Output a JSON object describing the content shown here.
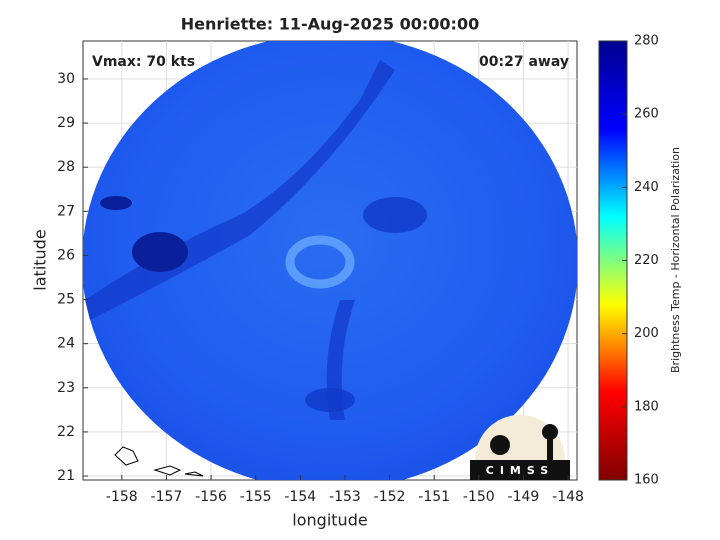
{
  "chart_data": {
    "type": "map",
    "title": "Henriette: 11-Aug-2025 00:00:00",
    "xlabel": "longitude",
    "ylabel": "latitude",
    "xlim": [
      -158.87,
      -147.8
    ],
    "ylim": [
      20.91,
      30.86
    ],
    "xticks": [
      -158,
      -157,
      -156,
      -155,
      -154,
      -153,
      -152,
      -151,
      -150,
      -149,
      -148
    ],
    "yticks": [
      21,
      22,
      23,
      24,
      25,
      26,
      27,
      28,
      29,
      30
    ],
    "grid": true,
    "annotations": [
      "Vmax: 70 kts",
      "00:27 away"
    ],
    "logo_text": "CIMSS",
    "colorbar": {
      "label": "Brightness Temp - Horizontal Polarization",
      "lim": [
        160,
        280
      ],
      "ticks": [
        160,
        180,
        200,
        220,
        240,
        260,
        280
      ],
      "colormap": [
        "#800000",
        "#ff0000",
        "#ffff00",
        "#00ffff",
        "#0000ff",
        "#00008f"
      ]
    }
  }
}
